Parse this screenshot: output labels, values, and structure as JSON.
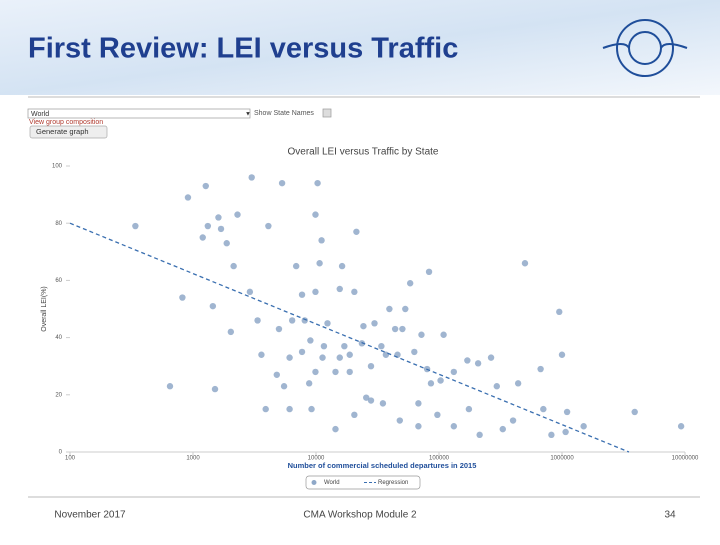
{
  "slide": {
    "title": "First Review: LEI versus Traffic",
    "footer": [
      "November 2017",
      "CMA Workshop Module 2",
      "34"
    ]
  },
  "controls": {
    "region": "World",
    "group_link": "View group composition",
    "button": "Generate graph",
    "checkbox": "Show State Names"
  },
  "chart_data": {
    "type": "scatter",
    "title": "Overall LEI versus Traffic by State",
    "x_label": "Number of commercial scheduled departures in 2015",
    "y_label": "Overall LEI(%)",
    "xlim": [
      100,
      10000000
    ],
    "xticks": [
      100,
      1000,
      10000,
      100000,
      1000000,
      10000000
    ],
    "xscale": "log",
    "ylim": [
      0,
      100
    ],
    "yticks": [
      0,
      20,
      40,
      60,
      80,
      100
    ],
    "grid": false,
    "legend": "bottom",
    "series": [
      {
        "name": "World",
        "type": "scatter",
        "color": "#8fa8c8",
        "x": [
          340,
          650,
          820,
          910,
          1270,
          1510,
          1450,
          1200,
          1320,
          1610,
          1690,
          1880,
          2300,
          3000,
          5300,
          10300,
          9900,
          4100,
          2140,
          2030,
          2900,
          3350,
          3600,
          3900,
          6100,
          9200,
          14400,
          21300,
          11100,
          10700,
          6900,
          16300,
          15600,
          9900,
          7700,
          8100,
          12400,
          20500,
          29900,
          39500,
          53200,
          58300,
          83000,
          86000,
          50400,
          72000,
          109000,
          170000,
          208000,
          265000,
          500000,
          950000,
          1000000,
          670000,
          295000,
          440000,
          400000,
          705000,
          1100000,
          1500000,
          3900000,
          9300000,
          175000,
          132000,
          97000,
          68000,
          48000,
          35000,
          25600,
          20500,
          6100,
          5500,
          4800,
          7700,
          9000,
          11600,
          15600,
          18800,
          23600,
          28000,
          37000,
          46000,
          63000,
          80000,
          103000,
          132000,
          5000,
          6400,
          24300,
          34000,
          44000,
          18800,
          17000,
          14400,
          11300,
          9900,
          8800,
          28000,
          68000,
          214000,
          330000,
          1070000,
          820000
        ],
        "values": [
          79,
          23,
          54,
          89,
          93,
          22,
          51,
          75,
          79,
          82,
          78,
          73,
          83,
          96,
          94,
          94,
          83,
          79,
          65,
          42,
          56,
          46,
          34,
          15,
          15,
          15,
          8,
          77,
          74,
          66,
          65,
          65,
          57,
          56,
          55,
          46,
          45,
          56,
          45,
          50,
          50,
          59,
          63,
          24,
          43,
          41,
          41,
          32,
          31,
          33,
          66,
          49,
          34,
          29,
          23,
          24,
          11,
          15,
          14,
          9,
          14,
          9,
          15,
          9,
          13,
          17,
          11,
          17,
          19,
          13,
          33,
          23,
          27,
          35,
          39,
          37,
          33,
          28,
          38,
          30,
          34,
          34,
          35,
          29,
          25,
          28,
          43,
          46,
          44,
          37,
          43,
          34,
          37,
          28,
          33,
          28,
          24,
          18,
          9,
          6,
          8,
          7,
          6
        ]
      },
      {
        "name": "Regression",
        "type": "line",
        "color": "#3a6fb0",
        "dash": true,
        "x": [
          100,
          3500000
        ],
        "values": [
          80,
          0
        ]
      }
    ]
  }
}
